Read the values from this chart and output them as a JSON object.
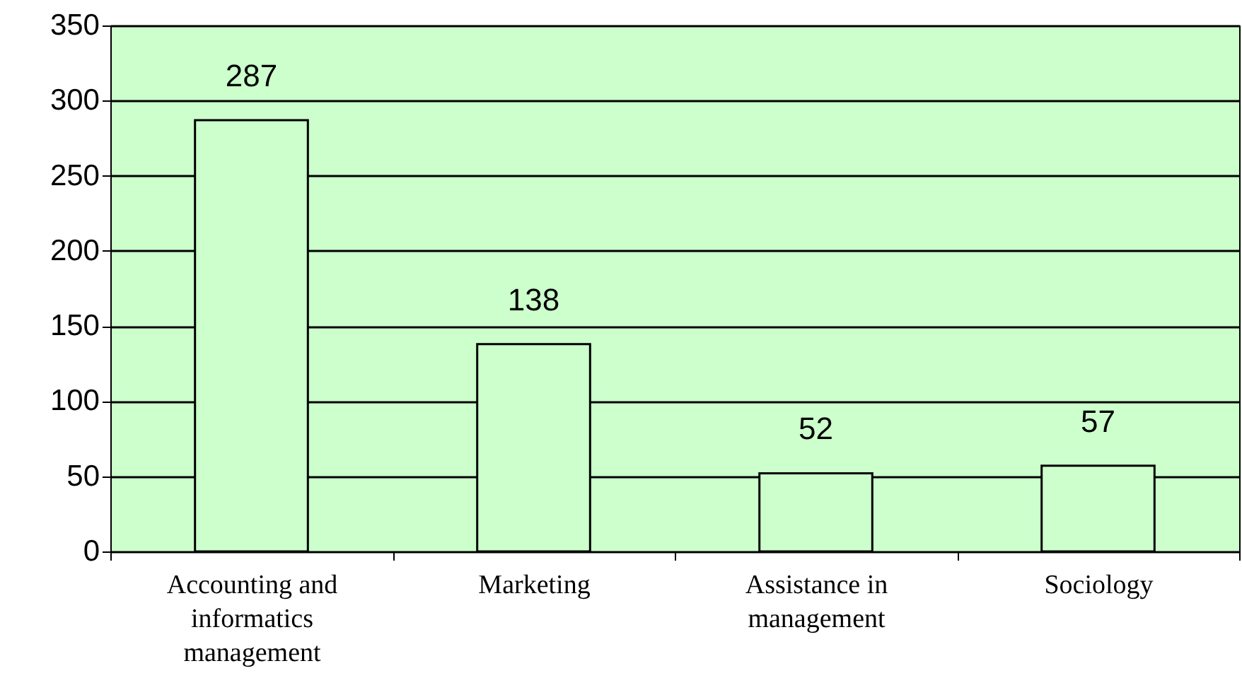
{
  "chart_data": {
    "type": "bar",
    "categories": [
      "Accounting and informatics management",
      "Marketing",
      "Assistance in management",
      "Sociology"
    ],
    "values": [
      287,
      138,
      52,
      57
    ],
    "color": "#ccffcc",
    "ylim": [
      0,
      350
    ],
    "yticks": [
      0,
      50,
      100,
      150,
      200,
      250,
      300,
      350
    ],
    "grid": "y",
    "data_labels": true
  }
}
